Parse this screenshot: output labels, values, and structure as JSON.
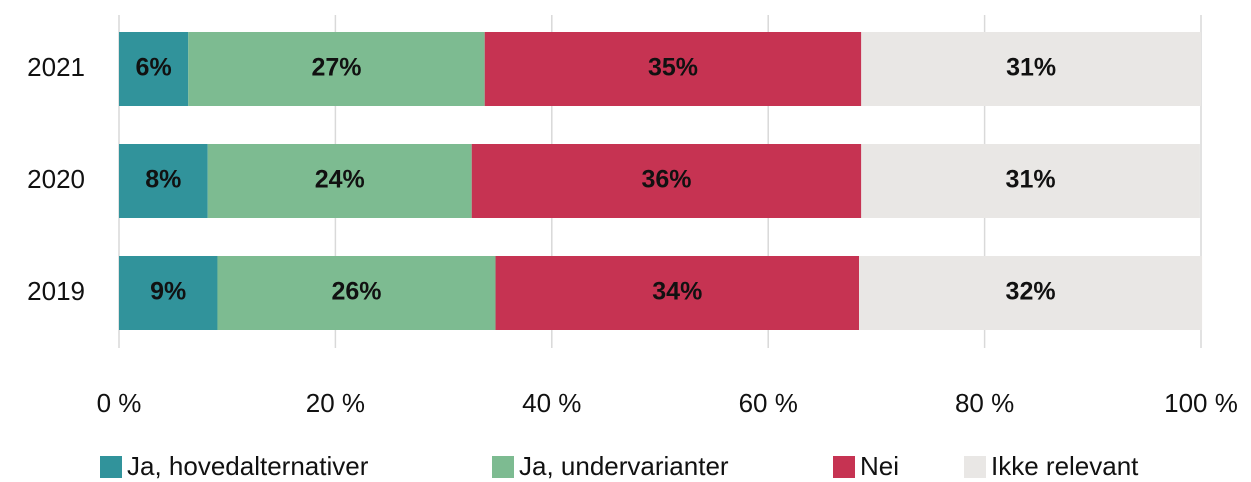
{
  "chart_data": {
    "type": "stacked_bar_horizontal",
    "categories": [
      "2021",
      "2020",
      "2019"
    ],
    "series": [
      {
        "name": "Ja, hovedalternativer",
        "color": "#31939b",
        "values": [
          6.4,
          8.2,
          9.1
        ],
        "value_labels": [
          "6%",
          "8%",
          "9%"
        ]
      },
      {
        "name": "Ja, undervarianter",
        "color": "#7dbb91",
        "values": [
          27.4,
          24.4,
          25.7
        ],
        "value_labels": [
          "27%",
          "24%",
          "26%"
        ]
      },
      {
        "name": "Nei",
        "color": "#c63352",
        "values": [
          34.8,
          36.0,
          33.6
        ],
        "value_labels": [
          "35%",
          "36%",
          "34%"
        ]
      },
      {
        "name": "Ikke relevant",
        "color": "#e9e7e5",
        "values": [
          31.4,
          31.3,
          31.7
        ],
        "value_labels": [
          "31%",
          "31%",
          "32%"
        ]
      }
    ],
    "xlim": [
      0,
      100
    ],
    "xticks": [
      {
        "value": 0,
        "label": "0 %"
      },
      {
        "value": 20,
        "label": "20 %"
      },
      {
        "value": 40,
        "label": "40 %"
      },
      {
        "value": 60,
        "label": "60 %"
      },
      {
        "value": 80,
        "label": "80 %"
      },
      {
        "value": 100,
        "label": "100 %"
      }
    ],
    "grid": true,
    "legend": "bottom"
  }
}
